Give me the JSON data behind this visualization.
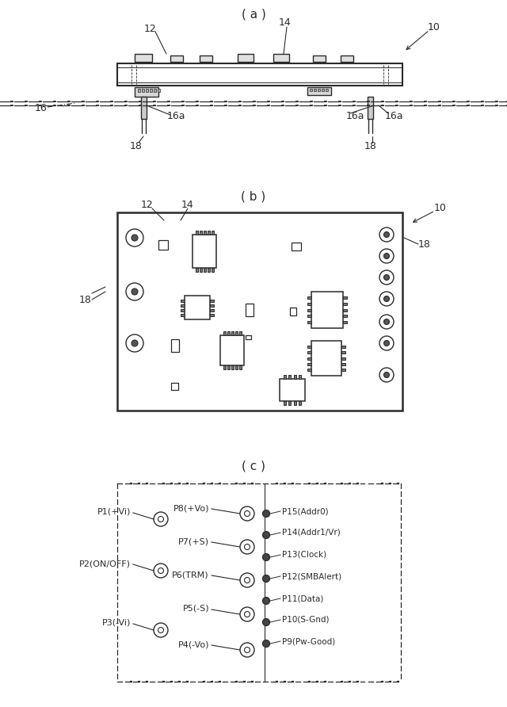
{
  "line_color": "#2a2a2a",
  "panel_a_label": "( a )",
  "panel_b_label": "( b )",
  "panel_c_label": "( c )",
  "label_fontsize": 11,
  "ref_fontsize": 9
}
